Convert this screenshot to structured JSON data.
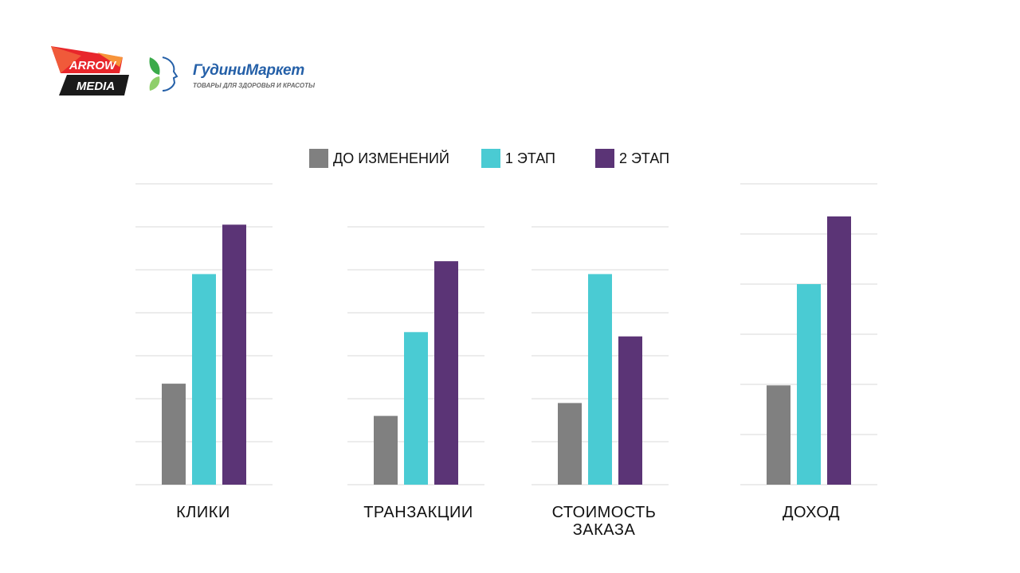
{
  "logos": {
    "arrow_media": {
      "line1": "ARROW",
      "line2": "MEDIA"
    },
    "gudini": {
      "name": "ГудиниМаркет",
      "tagline": "ТОВАРЫ ДЛЯ ЗДОРОВЬЯ И КРАСОТЫ"
    }
  },
  "colors": {
    "before": "#808080",
    "stage1": "#4acbd3",
    "stage2": "#5b3476",
    "grid": "#d9d9d9"
  },
  "chart_data": {
    "type": "bar",
    "title": "",
    "legend_position": "top",
    "grid": true,
    "series": [
      {
        "name": "ДО ИЗМЕНЕНИЙ",
        "color": "#808080"
      },
      {
        "name": "1 ЭТАП",
        "color": "#4acbd3"
      },
      {
        "name": "2 ЭТАП",
        "color": "#5b3476"
      }
    ],
    "panels": [
      {
        "category": "КЛИКИ",
        "ylim": [
          0,
          7
        ],
        "gridlines": 7,
        "values": [
          2.35,
          4.9,
          6.05
        ]
      },
      {
        "category": "ТРАНЗАКЦИИ",
        "ylim": [
          0,
          6
        ],
        "gridlines": 6,
        "values": [
          1.6,
          3.55,
          5.2
        ]
      },
      {
        "category": "СТОИМОСТЬ\nЗАКАЗА",
        "ylim": [
          0,
          6
        ],
        "gridlines": 6,
        "values": [
          1.9,
          4.9,
          3.45
        ]
      },
      {
        "category": "ДОХОД",
        "ylim": [
          0,
          6
        ],
        "gridlines": 6,
        "values": [
          1.98,
          4.0,
          5.35
        ]
      }
    ]
  }
}
